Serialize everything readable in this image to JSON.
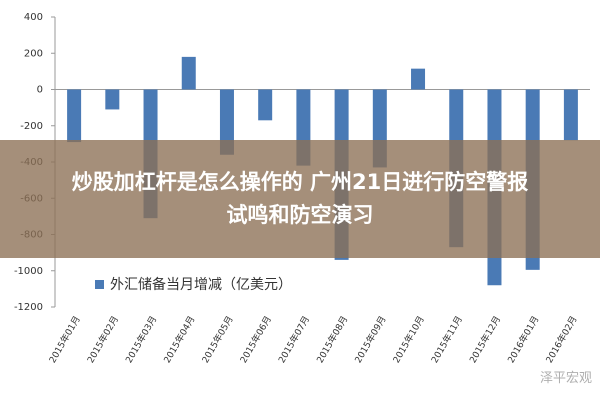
{
  "chart_data": {
    "type": "bar",
    "categories": [
      "2015年01月",
      "2015年02月",
      "2015年03月",
      "2015年04月",
      "2015年05月",
      "2015年06月",
      "2015年07月",
      "2015年08月",
      "2015年09月",
      "2015年10月",
      "2015年11月",
      "2015年12月",
      "2016年01月",
      "2016年02月"
    ],
    "series": [
      {
        "name": "外汇储备当月增减（亿美元）",
        "color": "#4a7ab5",
        "values": [
          -290,
          -110,
          -710,
          180,
          -360,
          -170,
          -420,
          -940,
          -430,
          115,
          -870,
          -1080,
          -995,
          -280
        ]
      }
    ],
    "ylim": [
      -1200,
      400
    ],
    "yticks": [
      400,
      200,
      0,
      -200,
      -400,
      -600,
      -800,
      -1000,
      -1200
    ],
    "grid": false
  },
  "banner": {
    "line1": "炒股加杠杆是怎么操作的 广州21日进行防空警报",
    "line2": "试鸣和防空演习"
  },
  "watermark": "泽平宏观"
}
